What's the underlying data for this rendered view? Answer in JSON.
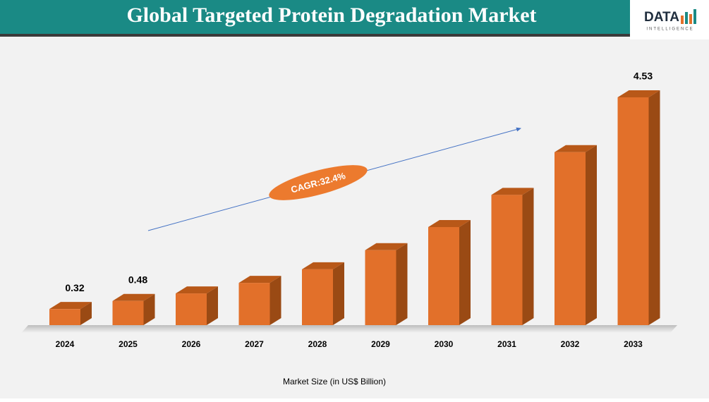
{
  "chart_data": {
    "type": "bar3d",
    "title": "Global Targeted Protein Degradation Market",
    "logo": {
      "text": "DATA",
      "subtext": "INTELLIGENCE"
    },
    "annotation": "CAGR:32.4%",
    "x_label": "Market Size (in US$ Billion)",
    "categories": [
      "2024",
      "2025",
      "2026",
      "2027",
      "2028",
      "2029",
      "2030",
      "2031",
      "2032",
      "2033"
    ],
    "values": [
      0.32,
      0.48,
      0.63,
      0.84,
      1.11,
      1.49,
      1.95,
      2.59,
      3.44,
      4.53
    ],
    "value_labels": [
      "0.32",
      "0.48",
      null,
      null,
      null,
      null,
      null,
      null,
      null,
      "4.53"
    ],
    "color": "#e2702a"
  }
}
